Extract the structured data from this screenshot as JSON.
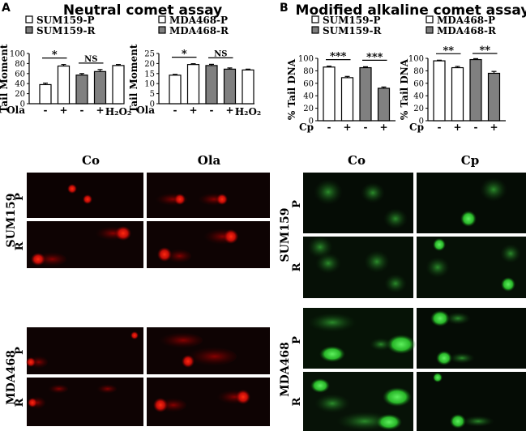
{
  "panels": {
    "A": {
      "letter": "A",
      "title": "Neutral comet assay",
      "row_labels": [
        "Co",
        "Ola"
      ],
      "sum159": {
        "cell_line": "SUM159",
        "labels": [
          "P",
          "R"
        ]
      },
      "mda468": {
        "cell_line": "MDA468",
        "labels": [
          "P",
          "R"
        ]
      }
    },
    "B": {
      "letter": "B",
      "title": "Modified alkaline comet assay",
      "row_labels": [
        "Co",
        "Cp"
      ],
      "sum159": {
        "cell_line": "SUM159",
        "labels": [
          "P",
          "R"
        ]
      },
      "mda468": {
        "cell_line": "MDA468",
        "labels": [
          "P",
          "R"
        ]
      }
    }
  },
  "colors": {
    "neutral_comet": "#e01010",
    "alkaline_comet": "#33d433",
    "bar_open": "#ffffff",
    "bar_filled": "#808080"
  },
  "chart_data": [
    {
      "type": "bar",
      "panel": "A",
      "legend": [
        {
          "label": "SUM159-P",
          "fill": "open"
        },
        {
          "label": "SUM159-R",
          "fill": "filled"
        }
      ],
      "ylabel": "Tail Moment",
      "ylim": [
        0,
        100
      ],
      "yticks": [
        "0",
        "20",
        "40",
        "60",
        "80",
        "100"
      ],
      "treatment_label": "Ola",
      "treatment_signs": [
        "-",
        "+",
        "-",
        "+"
      ],
      "extra_label": "H₂O₂",
      "categories": [
        "SUM159-P -",
        "SUM159-P +",
        "SUM159-R -",
        "SUM159-R +",
        "H₂O₂"
      ],
      "values": [
        38,
        75,
        57,
        64,
        76
      ],
      "errors": [
        3,
        3,
        3,
        4,
        2
      ],
      "fills": [
        "open",
        "open",
        "filled",
        "filled",
        "open"
      ],
      "significance": [
        {
          "from": 0,
          "to": 1,
          "label": "*"
        },
        {
          "from": 2,
          "to": 3,
          "label": "NS"
        }
      ]
    },
    {
      "type": "bar",
      "panel": "A",
      "legend": [
        {
          "label": "MDA468-P",
          "fill": "open"
        },
        {
          "label": "MDA468-R",
          "fill": "filled"
        }
      ],
      "ylabel": "Tail Moment",
      "ylim": [
        0,
        25
      ],
      "yticks": [
        "0",
        "5",
        "10",
        "15",
        "20",
        "25"
      ],
      "treatment_label": "Ola",
      "treatment_signs": [
        "-",
        "+",
        "-",
        "+"
      ],
      "extra_label": "H₂O₂",
      "categories": [
        "MDA468-P -",
        "MDA468-P +",
        "MDA468-R -",
        "MDA468-R +",
        "H₂O₂"
      ],
      "values": [
        14.2,
        19.5,
        19.0,
        17.2,
        16.8
      ],
      "errors": [
        0.4,
        0.4,
        0.6,
        0.6,
        0.4
      ],
      "fills": [
        "open",
        "open",
        "filled",
        "filled",
        "open"
      ],
      "significance": [
        {
          "from": 0,
          "to": 1,
          "label": "*"
        },
        {
          "from": 2,
          "to": 3,
          "label": "NS"
        }
      ]
    },
    {
      "type": "bar",
      "panel": "B",
      "legend": [
        {
          "label": "SUM159-P",
          "fill": "open"
        },
        {
          "label": "SUM159-R",
          "fill": "filled"
        }
      ],
      "ylabel": "% Tail DNA",
      "ylim": [
        0,
        100
      ],
      "yticks": [
        "0",
        "20",
        "40",
        "60",
        "80",
        "100"
      ],
      "treatment_label": "Cp",
      "treatment_signs": [
        "-",
        "+",
        "-",
        "+"
      ],
      "extra_label": "",
      "categories": [
        "SUM159-P -",
        "SUM159-P +",
        "SUM159-R -",
        "SUM159-R +"
      ],
      "values": [
        86,
        69,
        85,
        52
      ],
      "errors": [
        1.5,
        2,
        1.5,
        2
      ],
      "fills": [
        "open",
        "open",
        "filled",
        "filled"
      ],
      "significance": [
        {
          "from": 0,
          "to": 1,
          "label": "***"
        },
        {
          "from": 2,
          "to": 3,
          "label": "***"
        }
      ]
    },
    {
      "type": "bar",
      "panel": "B",
      "legend": [
        {
          "label": "MDA468-P",
          "fill": "open"
        },
        {
          "label": "MDA468-R",
          "fill": "filled"
        }
      ],
      "ylabel": "% Tail DNA",
      "ylim": [
        0,
        100
      ],
      "yticks": [
        "0",
        "20",
        "40",
        "60",
        "80",
        "100"
      ],
      "treatment_label": "Cp",
      "treatment_signs": [
        "-",
        "+",
        "-",
        "+"
      ],
      "extra_label": "",
      "categories": [
        "MDA468-P -",
        "MDA468-P +",
        "MDA468-R -",
        "MDA468-R +"
      ],
      "values": [
        96,
        85,
        98,
        76
      ],
      "errors": [
        1,
        2,
        1.5,
        3
      ],
      "fills": [
        "open",
        "open",
        "filled",
        "filled"
      ],
      "significance": [
        {
          "from": 0,
          "to": 1,
          "label": "**"
        },
        {
          "from": 2,
          "to": 3,
          "label": "**"
        }
      ]
    }
  ]
}
